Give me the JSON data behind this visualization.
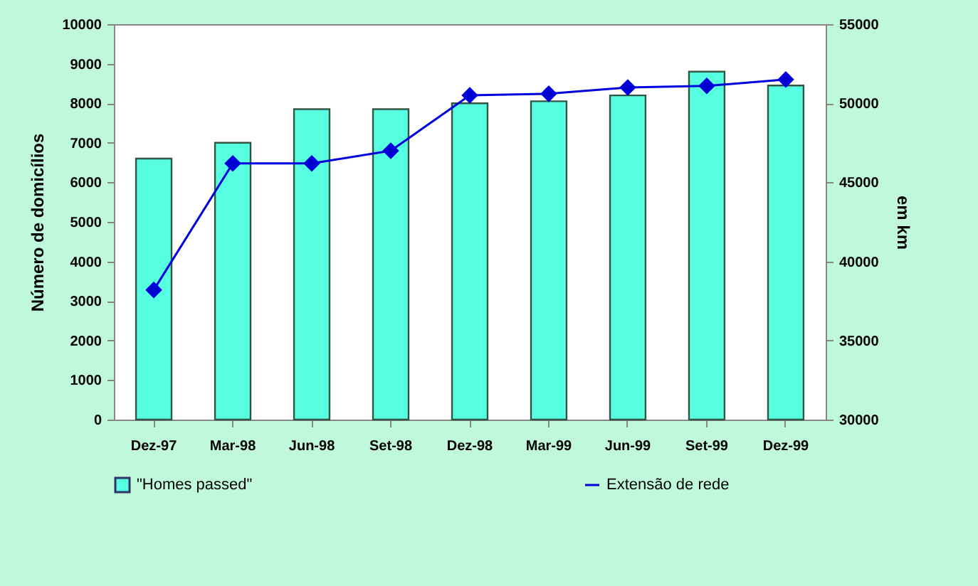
{
  "chart_data": {
    "type": "bar",
    "categories": [
      "Dez-97",
      "Mar-98",
      "Jun-98",
      "Set-98",
      "Dez-98",
      "Mar-99",
      "Jun-99",
      "Set-99",
      "Dez-99"
    ],
    "series": [
      {
        "name": "\"Homes passed\"",
        "color": "#55ffe0",
        "values": [
          6600,
          7000,
          7850,
          7850,
          8000,
          8050,
          8200,
          8800,
          8450
        ]
      },
      {
        "name": "Extensão de rede",
        "type": "line",
        "axis": "y2",
        "color": "#0000dd",
        "marker": "diamond",
        "values": [
          38200,
          46200,
          46200,
          47000,
          50500,
          50600,
          51000,
          51100,
          51500
        ]
      }
    ],
    "ylabel": "Número de domicílios",
    "y2label": "em km",
    "ylim": [
      0,
      10000
    ],
    "yticks": [
      0,
      1000,
      2000,
      3000,
      4000,
      5000,
      6000,
      7000,
      8000,
      9000,
      10000
    ],
    "y2lim": [
      30000,
      55000
    ],
    "y2ticks": [
      30000,
      35000,
      40000,
      45000,
      50000,
      55000
    ],
    "grid": false,
    "legend": "bottom"
  }
}
